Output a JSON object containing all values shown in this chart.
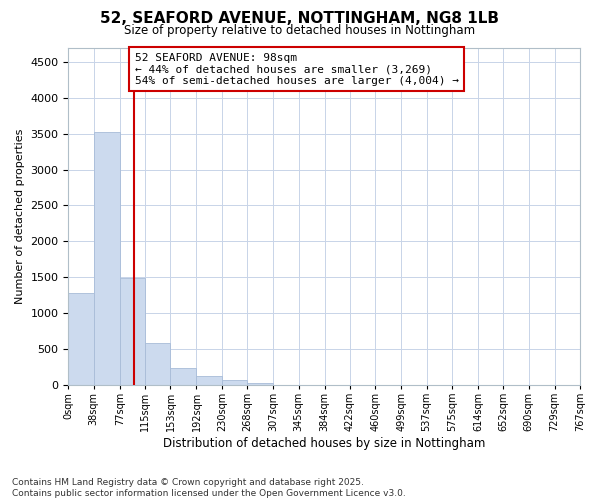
{
  "title": "52, SEAFORD AVENUE, NOTTINGHAM, NG8 1LB",
  "subtitle": "Size of property relative to detached houses in Nottingham",
  "xlabel": "Distribution of detached houses by size in Nottingham",
  "ylabel": "Number of detached properties",
  "bar_color": "#ccdaee",
  "bar_edgecolor": "#a8bcd8",
  "background_color": "#ffffff",
  "grid_color": "#c8d4e8",
  "annotation_line1": "52 SEAFORD AVENUE: 98sqm",
  "annotation_line2": "← 44% of detached houses are smaller (3,269)",
  "annotation_line3": "54% of semi-detached houses are larger (4,004) →",
  "property_line_x": 98,
  "property_line_color": "#cc0000",
  "bin_edges": [
    0,
    38,
    77,
    115,
    153,
    192,
    230,
    268,
    307,
    345,
    384,
    422,
    460,
    499,
    537,
    575,
    614,
    652,
    690,
    729,
    767
  ],
  "bin_labels": [
    "0sqm",
    "38sqm",
    "77sqm",
    "115sqm",
    "153sqm",
    "192sqm",
    "230sqm",
    "268sqm",
    "307sqm",
    "345sqm",
    "384sqm",
    "422sqm",
    "460sqm",
    "499sqm",
    "537sqm",
    "575sqm",
    "614sqm",
    "652sqm",
    "690sqm",
    "729sqm",
    "767sqm"
  ],
  "bar_heights": [
    1280,
    3530,
    1490,
    590,
    240,
    125,
    65,
    30,
    0,
    0,
    0,
    0,
    0,
    0,
    0,
    0,
    0,
    0,
    0,
    0
  ],
  "ylim": [
    0,
    4700
  ],
  "yticks": [
    0,
    500,
    1000,
    1500,
    2000,
    2500,
    3000,
    3500,
    4000,
    4500
  ],
  "footnote": "Contains HM Land Registry data © Crown copyright and database right 2025.\nContains public sector information licensed under the Open Government Licence v3.0."
}
